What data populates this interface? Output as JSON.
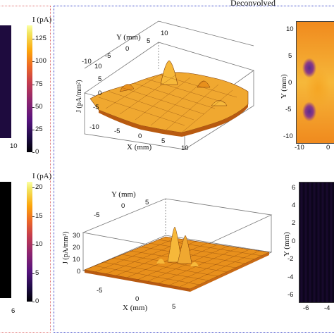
{
  "header": {
    "title": "Deconvolved"
  },
  "left_colorbars": [
    {
      "unit_label": "I (pA)",
      "ticks": [
        "125",
        "100",
        "75",
        "50",
        "25",
        "0"
      ],
      "panel_axis_ticks": [
        "10"
      ],
      "range": [
        0,
        140
      ]
    },
    {
      "unit_label": "I (pA)",
      "ticks": [
        "20",
        "15",
        "10",
        "5",
        "0"
      ],
      "panel_axis_ticks": [
        "6"
      ],
      "range": [
        0,
        21
      ]
    }
  ],
  "surface_top": {
    "y_axis_label": "Y (mm)",
    "y_ticks": [
      "10",
      "5",
      "0",
      "-5",
      "-10"
    ],
    "x_axis_label": "X (mm)",
    "x_ticks": [
      "-10",
      "-5",
      "0",
      "5",
      "10"
    ],
    "z_axis_label": "J (pA/mm²)",
    "z_ticks": [
      "10",
      "5",
      "0",
      "-5"
    ]
  },
  "surface_bottom": {
    "y_axis_label": "Y (mm)",
    "y_ticks": [
      "5",
      "0",
      "-5"
    ],
    "x_axis_label": "X (mm)",
    "x_ticks": [
      "-5",
      "0",
      "5"
    ],
    "z_axis_label": "J (pA/mm²)",
    "z_ticks": [
      "30",
      "20",
      "10",
      "0"
    ]
  },
  "heatmap_top_right": {
    "y_axis_label": "Y (mm)",
    "y_ticks": [
      "10",
      "5",
      "0",
      "-5",
      "-10"
    ],
    "x_ticks": [
      "-10",
      "0"
    ]
  },
  "heatmap_bottom_right": {
    "y_axis_label": "Y (mm)",
    "y_ticks": [
      "6",
      "4",
      "2",
      "0",
      "-2",
      "-4",
      "-6"
    ],
    "x_ticks": [
      "-6",
      "-4"
    ]
  },
  "colors": {
    "surface_light": "#f6b83a",
    "surface_mid": "#e8901c",
    "surface_dark": "#b85a10",
    "dark_panel": "#1e0b3e",
    "frame_blue": "#3b47c9",
    "frame_red": "#e07070"
  }
}
